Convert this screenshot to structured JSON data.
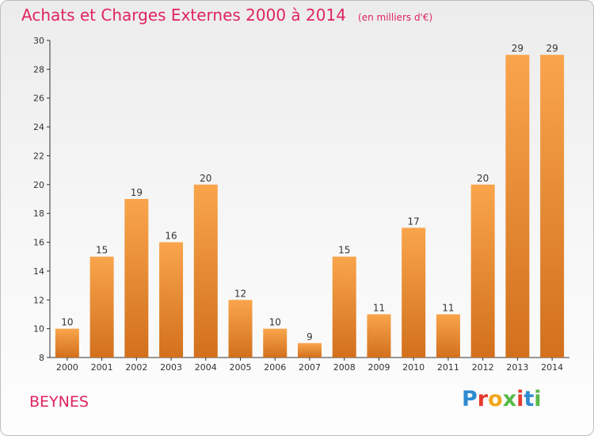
{
  "header": {
    "title": "Achats et Charges Externes 2000 à 2014",
    "subtitle": "(en milliers d'€)"
  },
  "footer": {
    "commune": "BEYNES",
    "brand": "Proxiti"
  },
  "colors": {
    "title": "#e0245e",
    "bar_light": "#f9a54c",
    "bar_dark": "#d2701d",
    "axis": "#333333",
    "grid": "#d0d0d0"
  },
  "brand_letter_colors": [
    "#2e8bd0",
    "#e63a2e",
    "#f2a51c",
    "#57b947",
    "#e63a2e",
    "#2e8bd0",
    "#57b947"
  ],
  "chart_data": {
    "type": "bar",
    "title": "Achats et Charges Externes 2000 à 2014",
    "subtitle": "(en milliers d'€)",
    "categories": [
      "2000",
      "2001",
      "2002",
      "2003",
      "2004",
      "2005",
      "2006",
      "2007",
      "2008",
      "2009",
      "2010",
      "2011",
      "2012",
      "2013",
      "2014"
    ],
    "values": [
      10,
      15,
      19,
      16,
      20,
      12,
      10,
      9,
      15,
      11,
      17,
      11,
      20,
      29,
      29
    ],
    "ylim": [
      8,
      30
    ],
    "yticks": [
      8,
      10,
      12,
      14,
      16,
      18,
      20,
      22,
      24,
      26,
      28,
      30
    ],
    "grid": false,
    "legend": "none"
  }
}
